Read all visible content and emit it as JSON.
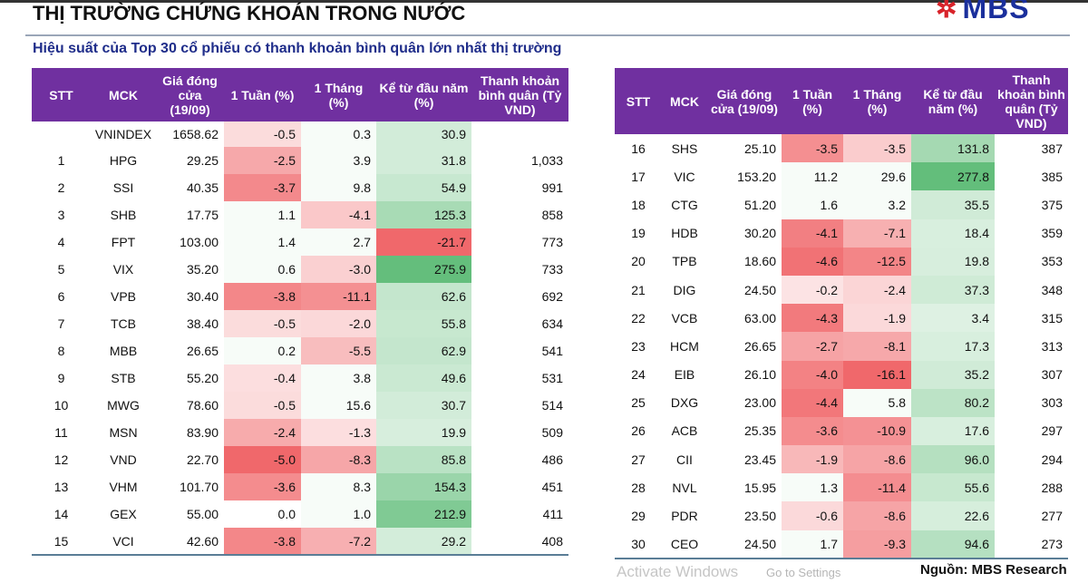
{
  "header": {
    "title": "THỊ TRƯỜNG CHỨNG KHOÁN TRONG NƯỚC",
    "logo_text": "MBS",
    "subtitle": "Hiệu suất của Top 30 cổ phiếu có thanh khoản bình quân lớn nhất thị trường"
  },
  "columns": [
    "STT",
    "MCK",
    "Giá đóng cửa (19/09)",
    "1 Tuần (%)",
    "1 Tháng (%)",
    "Kể từ đầu năm (%)",
    "Thanh khoản bình quân (Tỷ VND)"
  ],
  "colors": {
    "header": "#7030a0",
    "negative": "#f0686b",
    "positive": "#63be7b",
    "title_blue": "#1f2d8a"
  },
  "left_rows": [
    [
      "",
      "VNINDEX",
      "1658.62",
      "-0.5",
      "0.3",
      "30.9",
      ""
    ],
    [
      "1",
      "HPG",
      "29.25",
      "-2.5",
      "3.9",
      "31.8",
      "1,033"
    ],
    [
      "2",
      "SSI",
      "40.35",
      "-3.7",
      "9.8",
      "54.9",
      "991"
    ],
    [
      "3",
      "SHB",
      "17.75",
      "1.1",
      "-4.1",
      "125.3",
      "858"
    ],
    [
      "4",
      "FPT",
      "103.00",
      "1.4",
      "2.7",
      "-21.7",
      "773"
    ],
    [
      "5",
      "VIX",
      "35.20",
      "0.6",
      "-3.0",
      "275.9",
      "733"
    ],
    [
      "6",
      "VPB",
      "30.40",
      "-3.8",
      "-11.1",
      "62.6",
      "692"
    ],
    [
      "7",
      "TCB",
      "38.40",
      "-0.5",
      "-2.0",
      "55.8",
      "634"
    ],
    [
      "8",
      "MBB",
      "26.65",
      "0.2",
      "-5.5",
      "62.9",
      "541"
    ],
    [
      "9",
      "STB",
      "55.20",
      "-0.4",
      "3.8",
      "49.6",
      "531"
    ],
    [
      "10",
      "MWG",
      "78.60",
      "-0.5",
      "15.6",
      "30.7",
      "514"
    ],
    [
      "11",
      "MSN",
      "83.90",
      "-2.4",
      "-1.3",
      "19.9",
      "509"
    ],
    [
      "12",
      "VND",
      "22.70",
      "-5.0",
      "-8.3",
      "85.8",
      "486"
    ],
    [
      "13",
      "VHM",
      "101.70",
      "-3.6",
      "8.3",
      "154.3",
      "451"
    ],
    [
      "14",
      "GEX",
      "55.00",
      "0.0",
      "1.0",
      "212.9",
      "411"
    ],
    [
      "15",
      "VCI",
      "42.60",
      "-3.8",
      "-7.2",
      "29.2",
      "408"
    ]
  ],
  "right_rows": [
    [
      "16",
      "SHS",
      "25.10",
      "-3.5",
      "-3.5",
      "131.8",
      "387"
    ],
    [
      "17",
      "VIC",
      "153.20",
      "11.2",
      "29.6",
      "277.8",
      "385"
    ],
    [
      "18",
      "CTG",
      "51.20",
      "1.6",
      "3.2",
      "35.5",
      "375"
    ],
    [
      "19",
      "HDB",
      "30.20",
      "-4.1",
      "-7.1",
      "18.4",
      "359"
    ],
    [
      "20",
      "TPB",
      "18.60",
      "-4.6",
      "-12.5",
      "19.8",
      "353"
    ],
    [
      "21",
      "DIG",
      "24.50",
      "-0.2",
      "-2.4",
      "37.3",
      "348"
    ],
    [
      "22",
      "VCB",
      "63.00",
      "-4.3",
      "-1.9",
      "3.4",
      "315"
    ],
    [
      "23",
      "HCM",
      "26.65",
      "-2.7",
      "-8.1",
      "17.3",
      "313"
    ],
    [
      "24",
      "EIB",
      "26.10",
      "-4.0",
      "-16.1",
      "35.2",
      "307"
    ],
    [
      "25",
      "DXG",
      "23.00",
      "-4.4",
      "5.8",
      "80.2",
      "303"
    ],
    [
      "26",
      "ACB",
      "25.35",
      "-3.6",
      "-10.9",
      "17.6",
      "297"
    ],
    [
      "27",
      "CII",
      "23.45",
      "-1.9",
      "-8.6",
      "96.0",
      "294"
    ],
    [
      "28",
      "NVL",
      "15.95",
      "1.3",
      "-11.4",
      "55.6",
      "288"
    ],
    [
      "29",
      "PDR",
      "23.50",
      "-0.6",
      "-8.6",
      "22.6",
      "277"
    ],
    [
      "30",
      "CEO",
      "24.50",
      "1.7",
      "-9.3",
      "94.6",
      "273"
    ]
  ],
  "source": "Nguồn: MBS Research",
  "watermark": {
    "line1": "Activate Windows",
    "line2": "Go to Settings"
  }
}
